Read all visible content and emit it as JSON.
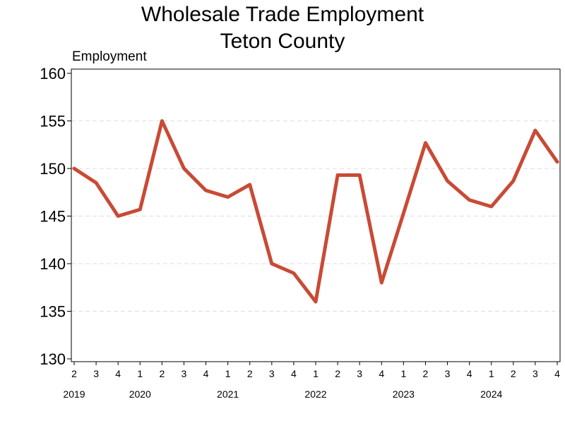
{
  "chart_data": {
    "type": "line",
    "title": [
      "Wholesale Trade Employment",
      "Teton County"
    ],
    "ylabel": "Employment",
    "xlabel": "",
    "ylim": [
      130,
      160
    ],
    "yticks": [
      130,
      135,
      140,
      145,
      150,
      155,
      160
    ],
    "grid": true,
    "line_color": "#c94a35",
    "categories": [
      "2",
      "3",
      "4",
      "1",
      "2",
      "3",
      "4",
      "1",
      "2",
      "3",
      "4",
      "1",
      "2",
      "3",
      "4",
      "1",
      "2",
      "3",
      "4",
      "1",
      "2",
      "3",
      "4"
    ],
    "years": [
      {
        "label": "2019",
        "start_index": 0
      },
      {
        "label": "2020",
        "start_index": 3
      },
      {
        "label": "2021",
        "start_index": 7
      },
      {
        "label": "2022",
        "start_index": 11
      },
      {
        "label": "2023",
        "start_index": 15
      },
      {
        "label": "2024",
        "start_index": 19
      }
    ],
    "series": [
      {
        "values": [
          150.0,
          148.5,
          145.0,
          145.7,
          155.0,
          150.0,
          147.7,
          147.0,
          148.3,
          140.0,
          139.0,
          136.0,
          149.3,
          149.3,
          138.0,
          145.3,
          152.7,
          148.7,
          146.7,
          146.0,
          148.7,
          154.0,
          150.7
        ]
      }
    ]
  }
}
